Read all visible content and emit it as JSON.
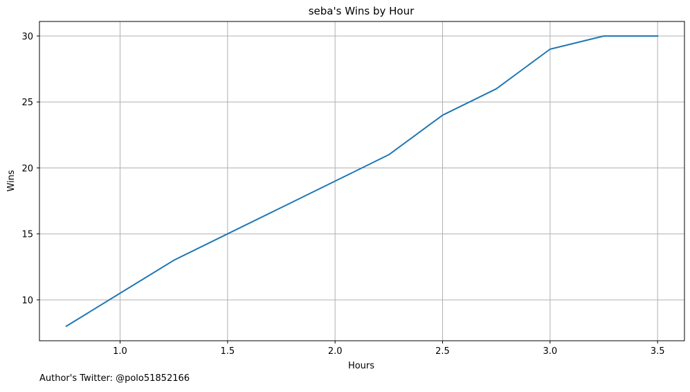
{
  "chart_data": {
    "type": "line",
    "title": "seba's Wins by Hour",
    "xlabel": "Hours",
    "ylabel": "Wins",
    "x": [
      0.75,
      1.0,
      1.25,
      1.5,
      1.75,
      2.0,
      2.25,
      2.5,
      2.75,
      3.0,
      3.25,
      3.5
    ],
    "series": [
      {
        "values": [
          8,
          10.5,
          13,
          15,
          17,
          19,
          21,
          24,
          26,
          29,
          30,
          30
        ],
        "color": "#1f77b4"
      }
    ],
    "xlim": [
      0.625,
      3.625
    ],
    "ylim": [
      6.9,
      31.1
    ],
    "xticks": [
      1.0,
      1.5,
      2.0,
      2.5,
      3.0,
      3.5
    ],
    "xtick_labels": [
      "1.0",
      "1.5",
      "2.0",
      "2.5",
      "3.0",
      "3.5"
    ],
    "yticks": [
      10,
      15,
      20,
      25,
      30
    ],
    "ytick_labels": [
      "10",
      "15",
      "20",
      "25",
      "30"
    ],
    "grid": true,
    "grid_color": "#b0b0b0",
    "axis_color": "#000000"
  },
  "footer": {
    "attribution": "Author's Twitter: @polo51852166"
  }
}
